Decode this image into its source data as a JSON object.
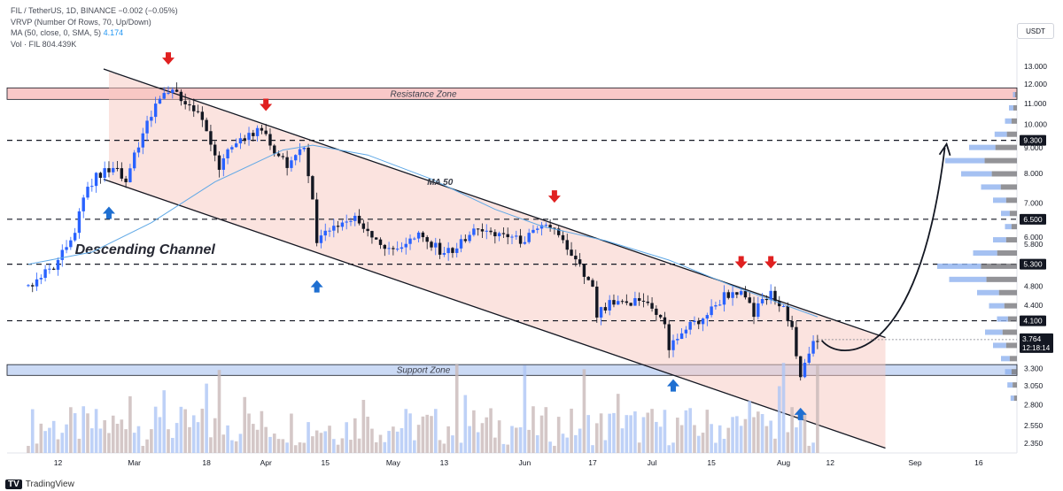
{
  "legend": {
    "line1": "FIL / TetherUS, 1D, BINANCE  −0.002 (−0.05%)",
    "line2": "VRVP (Number Of Rows, 70, Up/Down)",
    "line3_prefix": "MA (50, close, 0, SMA, 5)",
    "line3_value": "4.174",
    "line4": "Vol · FIL  804.439K"
  },
  "quote_currency": "USDT",
  "logo_text": "TradingView",
  "colors": {
    "up": "#2962ff",
    "down": "#131722",
    "ma": "#5fa8e6",
    "channel_fill": "#f8c8c0",
    "resistance_fill": "#f7b5b5",
    "support_fill": "#b9cdf1",
    "arrow_red": "#e02020",
    "arrow_blue": "#1f6fd1",
    "price_label_bg": "#131722"
  },
  "chart_data": {
    "type": "candlestick",
    "symbol": "FIL / TetherUS",
    "timeframe": "1D",
    "exchange": "BINANCE",
    "y_scale": "log",
    "ylim": [
      2.25,
      13.6
    ],
    "y_ticks": [
      "13.000",
      "12.000",
      "11.000",
      "10.000",
      "9.000",
      "8.000",
      "7.000",
      "6.000",
      "5.800",
      "4.800",
      "4.400",
      "3.300",
      "3.050",
      "2.800",
      "2.550",
      "2.350"
    ],
    "x_ticks": [
      "12",
      "Mar",
      "18",
      "Apr",
      "15",
      "May",
      "13",
      "Jun",
      "17",
      "Jul",
      "15",
      "Aug",
      "12",
      "Sep",
      "16"
    ],
    "series_start_date": "2024-02-05",
    "series_end_date": "2024-08-09",
    "close_points": [
      [
        "2024-02-05",
        4.8
      ],
      [
        "2024-02-12",
        5.3
      ],
      [
        "2024-02-16",
        6.2
      ],
      [
        "2024-02-19",
        7.5
      ],
      [
        "2024-02-22",
        8.0
      ],
      [
        "2024-02-26",
        8.2
      ],
      [
        "2024-02-28",
        7.6
      ],
      [
        "2024-03-01",
        8.8
      ],
      [
        "2024-03-04",
        10.0
      ],
      [
        "2024-03-07",
        11.2
      ],
      [
        "2024-03-10",
        11.8
      ],
      [
        "2024-03-13",
        11.0
      ],
      [
        "2024-03-16",
        10.5
      ],
      [
        "2024-03-19",
        9.3
      ],
      [
        "2024-03-21",
        8.2
      ],
      [
        "2024-03-24",
        9.0
      ],
      [
        "2024-03-27",
        9.4
      ],
      [
        "2024-03-29",
        9.7
      ],
      [
        "2024-04-01",
        9.4
      ],
      [
        "2024-04-03",
        8.9
      ],
      [
        "2024-04-06",
        8.4
      ],
      [
        "2024-04-08",
        8.5
      ],
      [
        "2024-04-10",
        9.0
      ],
      [
        "2024-04-12",
        7.2
      ],
      [
        "2024-04-13",
        5.8
      ],
      [
        "2024-04-15",
        6.2
      ],
      [
        "2024-04-19",
        6.4
      ],
      [
        "2024-04-22",
        6.5
      ],
      [
        "2024-04-26",
        6.1
      ],
      [
        "2024-04-30",
        5.6
      ],
      [
        "2024-05-03",
        5.8
      ],
      [
        "2024-05-07",
        6.0
      ],
      [
        "2024-05-11",
        5.7
      ],
      [
        "2024-05-14",
        5.6
      ],
      [
        "2024-05-18",
        5.9
      ],
      [
        "2024-05-21",
        6.3
      ],
      [
        "2024-05-24",
        6.0
      ],
      [
        "2024-05-27",
        6.1
      ],
      [
        "2024-05-30",
        5.9
      ],
      [
        "2024-06-02",
        6.0
      ],
      [
        "2024-06-05",
        6.2
      ],
      [
        "2024-06-07",
        6.3
      ],
      [
        "2024-06-09",
        6.1
      ],
      [
        "2024-06-11",
        5.6
      ],
      [
        "2024-06-14",
        5.2
      ],
      [
        "2024-06-17",
        4.7
      ],
      [
        "2024-06-18",
        4.2
      ],
      [
        "2024-06-21",
        4.4
      ],
      [
        "2024-06-25",
        4.4
      ],
      [
        "2024-06-28",
        4.5
      ],
      [
        "2024-07-01",
        4.4
      ],
      [
        "2024-07-04",
        4.0
      ],
      [
        "2024-07-05",
        3.6
      ],
      [
        "2024-07-08",
        3.9
      ],
      [
        "2024-07-12",
        4.1
      ],
      [
        "2024-07-15",
        4.3
      ],
      [
        "2024-07-18",
        4.6
      ],
      [
        "2024-07-21",
        4.7
      ],
      [
        "2024-07-23",
        4.5
      ],
      [
        "2024-07-25",
        4.2
      ],
      [
        "2024-07-27",
        4.5
      ],
      [
        "2024-07-29",
        4.6
      ],
      [
        "2024-08-01",
        4.3
      ],
      [
        "2024-08-03",
        3.9
      ],
      [
        "2024-08-05",
        3.25
      ],
      [
        "2024-08-07",
        3.6
      ],
      [
        "2024-08-09",
        3.764
      ]
    ],
    "ma_points": [
      [
        "2024-02-05",
        5.3
      ],
      [
        "2024-02-20",
        5.6
      ],
      [
        "2024-03-05",
        6.4
      ],
      [
        "2024-03-20",
        7.7
      ],
      [
        "2024-04-05",
        8.9
      ],
      [
        "2024-04-12",
        9.1
      ],
      [
        "2024-04-25",
        8.7
      ],
      [
        "2024-05-10",
        7.8
      ],
      [
        "2024-05-25",
        6.8
      ],
      [
        "2024-06-05",
        6.3
      ],
      [
        "2024-06-20",
        5.9
      ],
      [
        "2024-07-05",
        5.4
      ],
      [
        "2024-07-20",
        4.8
      ],
      [
        "2024-08-09",
        4.174
      ]
    ],
    "current_price": "3.764",
    "countdown": "12:18:14",
    "levels": [
      {
        "value": 9.3,
        "label": "9.300",
        "style": "dashed"
      },
      {
        "value": 6.5,
        "label": "6.500",
        "style": "dashed"
      },
      {
        "value": 5.3,
        "label": "5.300",
        "style": "dashed"
      },
      {
        "value": 4.1,
        "label": "4.100",
        "style": "dashed"
      }
    ],
    "zones": [
      {
        "name": "Resistance Zone",
        "from": 11.2,
        "to": 11.8
      },
      {
        "name": "Support Zone",
        "from": 3.2,
        "to": 3.36
      }
    ],
    "channel": {
      "name": "Descending Channel",
      "upper": [
        [
          "2024-02-24",
          12.7
        ],
        [
          "2024-08-25",
          3.8
        ]
      ],
      "lower": [
        [
          "2024-02-24",
          7.7
        ],
        [
          "2024-08-25",
          2.3
        ]
      ]
    },
    "ma_label": "MA 50",
    "sell_arrows": [
      "2024-03-09",
      "2024-04-01",
      "2024-06-08",
      "2024-07-22",
      "2024-07-29"
    ],
    "buy_arrows": [
      "2024-02-24",
      "2024-04-13",
      "2024-07-06",
      "2024-08-05"
    ],
    "projection": {
      "from": [
        "2024-08-10",
        3.75
      ],
      "to": [
        "2024-09-08",
        9.0
      ]
    },
    "volume_profile": [
      0.05,
      0.1,
      0.15,
      0.28,
      0.6,
      0.9,
      0.7,
      0.45,
      0.3,
      0.2,
      0.15,
      0.3,
      0.55,
      1.0,
      0.85,
      0.5,
      0.35,
      0.25,
      0.4,
      0.3,
      0.2,
      0.15,
      0.12,
      0.08
    ]
  }
}
